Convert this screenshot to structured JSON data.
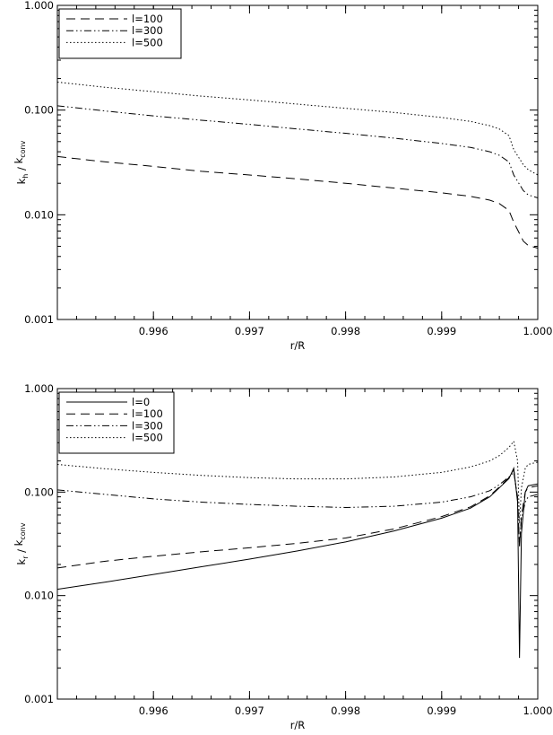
{
  "chart_data": [
    {
      "type": "line",
      "yscale": "log",
      "xlim": [
        0.995,
        1.0
      ],
      "ylim": [
        0.001,
        1.0
      ],
      "xticks": [
        "0.996",
        "0.997",
        "0.998",
        "0.999",
        "1.000"
      ],
      "yticks": [
        "0.001",
        "0.010",
        "0.100",
        "1.000"
      ],
      "xlabel": "r/R",
      "ylabel": {
        "k": "k",
        "sub1": "h",
        "slash": " / ",
        "k2": "k",
        "sub2": "conv"
      },
      "legend_position": "top-left",
      "grid": false,
      "series": [
        {
          "name": "l=100",
          "style": "dashed",
          "x": [
            0.995,
            0.9955,
            0.996,
            0.9965,
            0.997,
            0.9975,
            0.998,
            0.9985,
            0.999,
            0.9993,
            0.9995,
            0.9996,
            0.9997,
            0.99975,
            0.99985,
            0.9999,
            1.0
          ],
          "y": [
            0.036,
            0.032,
            0.029,
            0.026,
            0.024,
            0.022,
            0.02,
            0.018,
            0.0162,
            0.015,
            0.0138,
            0.0128,
            0.011,
            0.0085,
            0.0056,
            0.0051,
            0.0048
          ]
        },
        {
          "name": "l=300",
          "style": "dash-dot-dot",
          "x": [
            0.995,
            0.9955,
            0.996,
            0.9965,
            0.997,
            0.9975,
            0.998,
            0.9985,
            0.999,
            0.9993,
            0.9995,
            0.9996,
            0.9997,
            0.99975,
            0.99985,
            0.9999,
            1.0
          ],
          "y": [
            0.11,
            0.098,
            0.088,
            0.08,
            0.073,
            0.066,
            0.06,
            0.054,
            0.048,
            0.044,
            0.04,
            0.037,
            0.032,
            0.024,
            0.017,
            0.0155,
            0.0145
          ]
        },
        {
          "name": "l=500",
          "style": "dotted",
          "x": [
            0.995,
            0.9955,
            0.996,
            0.9965,
            0.997,
            0.9975,
            0.998,
            0.9985,
            0.999,
            0.9993,
            0.9995,
            0.9996,
            0.9997,
            0.99975,
            0.99985,
            0.9999,
            1.0
          ],
          "y": [
            0.185,
            0.165,
            0.15,
            0.136,
            0.125,
            0.114,
            0.104,
            0.095,
            0.085,
            0.078,
            0.071,
            0.066,
            0.057,
            0.042,
            0.03,
            0.027,
            0.024
          ]
        }
      ]
    },
    {
      "type": "line",
      "yscale": "log",
      "xlim": [
        0.995,
        1.0
      ],
      "ylim": [
        0.001,
        1.0
      ],
      "xticks": [
        "0.996",
        "0.997",
        "0.998",
        "0.999",
        "1.000"
      ],
      "yticks": [
        "0.001",
        "0.010",
        "0.100",
        "1.000"
      ],
      "xlabel": "r/R",
      "ylabel": {
        "k": "k",
        "sub1": "r",
        "slash": " / ",
        "k2": "k",
        "sub2": "conv"
      },
      "legend_position": "top-left",
      "grid": false,
      "series": [
        {
          "name": "l=0",
          "style": "solid",
          "x": [
            0.995,
            0.9955,
            0.996,
            0.9965,
            0.997,
            0.9975,
            0.998,
            0.9985,
            0.999,
            0.9993,
            0.9995,
            0.9996,
            0.9997,
            0.99975,
            0.99979,
            0.99981,
            0.99983,
            0.99987,
            0.9999,
            1.0
          ],
          "y": [
            0.0115,
            0.0135,
            0.016,
            0.019,
            0.0225,
            0.027,
            0.033,
            0.042,
            0.056,
            0.07,
            0.09,
            0.11,
            0.135,
            0.17,
            0.08,
            0.0025,
            0.04,
            0.1,
            0.115,
            0.12
          ]
        },
        {
          "name": "l=100",
          "style": "dashed",
          "x": [
            0.995,
            0.9955,
            0.996,
            0.9965,
            0.997,
            0.9975,
            0.998,
            0.9985,
            0.999,
            0.9993,
            0.9995,
            0.9996,
            0.9997,
            0.99975,
            0.99979,
            0.99981,
            0.99983,
            0.99987,
            0.9999,
            1.0
          ],
          "y": [
            0.0185,
            0.0215,
            0.024,
            0.0265,
            0.029,
            0.032,
            0.036,
            0.044,
            0.058,
            0.072,
            0.092,
            0.112,
            0.138,
            0.165,
            0.085,
            0.03,
            0.06,
            0.1,
            0.11,
            0.115
          ]
        },
        {
          "name": "l=300",
          "style": "dash-dot-dot",
          "x": [
            0.995,
            0.9955,
            0.996,
            0.9965,
            0.997,
            0.9975,
            0.998,
            0.9985,
            0.999,
            0.9993,
            0.9995,
            0.9996,
            0.9997,
            0.99975,
            0.99979,
            0.99981,
            0.99983,
            0.99987,
            0.9999,
            1.0
          ],
          "y": [
            0.105,
            0.095,
            0.086,
            0.08,
            0.076,
            0.073,
            0.071,
            0.073,
            0.08,
            0.09,
            0.103,
            0.118,
            0.14,
            0.155,
            0.09,
            0.03,
            0.055,
            0.08,
            0.09,
            0.095
          ]
        },
        {
          "name": "l=500",
          "style": "dotted",
          "x": [
            0.995,
            0.9955,
            0.996,
            0.9965,
            0.997,
            0.9975,
            0.998,
            0.9985,
            0.999,
            0.9993,
            0.9995,
            0.9996,
            0.9997,
            0.99975,
            0.99979,
            0.99981,
            0.99983,
            0.99987,
            0.9999,
            1.0
          ],
          "y": [
            0.185,
            0.168,
            0.155,
            0.145,
            0.138,
            0.134,
            0.134,
            0.14,
            0.155,
            0.175,
            0.2,
            0.225,
            0.27,
            0.31,
            0.2,
            0.05,
            0.11,
            0.17,
            0.185,
            0.195
          ]
        }
      ]
    }
  ]
}
